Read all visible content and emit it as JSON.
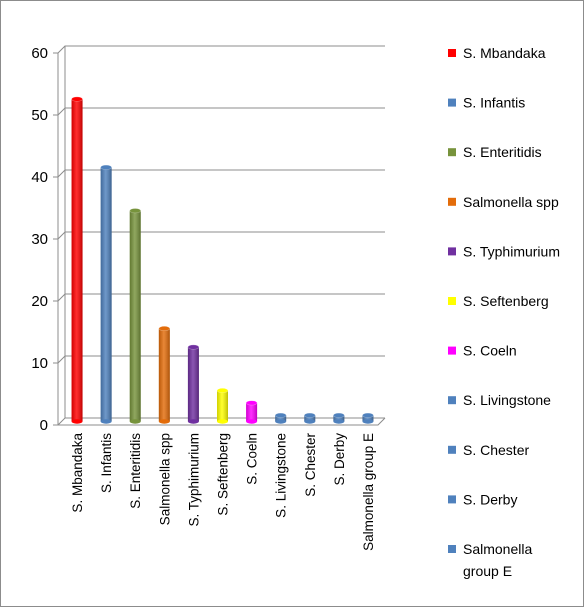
{
  "chart_data": {
    "type": "bar",
    "title": "",
    "xlabel": "",
    "ylabel": "",
    "ylim": [
      0,
      60
    ],
    "yticks": [
      0,
      10,
      20,
      30,
      40,
      50,
      60
    ],
    "grid": true,
    "legend_position": "right",
    "categories": [
      "S. Mbandaka",
      "S. Infantis",
      "S. Enteritidis",
      "Salmonella  spp",
      "S. Typhimurium",
      "S. Seftenberg",
      "S. Coeln",
      "S. Livingstone",
      "S. Chester",
      "S. Derby",
      "Salmonella  group E"
    ],
    "values": [
      52,
      41,
      34,
      15,
      12,
      5,
      3,
      1,
      1,
      1,
      1
    ],
    "colors": [
      "#ff0000",
      "#4f81bd",
      "#77933c",
      "#e36c0a",
      "#7030a0",
      "#ffff00",
      "#ff00ff",
      "#4f81bd",
      "#4f81bd",
      "#4f81bd",
      "#4f81bd"
    ],
    "legend": [
      {
        "label": "S. Mbandaka",
        "color": "#ff0000"
      },
      {
        "label": "S. Infantis",
        "color": "#4f81bd"
      },
      {
        "label": "S. Enteritidis",
        "color": "#77933c"
      },
      {
        "label": "Salmonella  spp",
        "color": "#e36c0a"
      },
      {
        "label": "S. Typhimurium",
        "color": "#7030a0"
      },
      {
        "label": "S. Seftenberg",
        "color": "#ffff00"
      },
      {
        "label": "S. Coeln",
        "color": "#ff00ff"
      },
      {
        "label": "S. Livingstone",
        "color": "#4f81bd"
      },
      {
        "label": "S. Chester",
        "color": "#4f81bd"
      },
      {
        "label": "S. Derby",
        "color": "#4f81bd"
      },
      {
        "label": "Salmonella\ngroup E",
        "color": "#4f81bd"
      }
    ]
  }
}
